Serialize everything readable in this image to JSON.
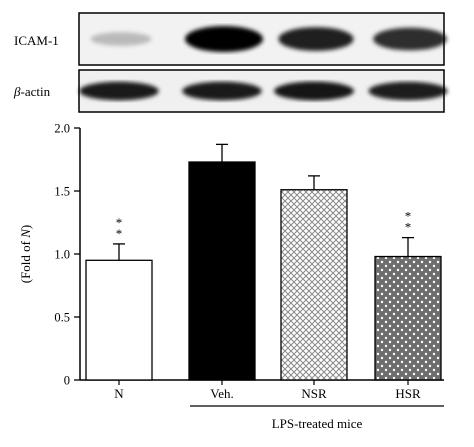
{
  "blot": {
    "panels": [
      {
        "label_prefix": "",
        "label_main": "ICAM-1",
        "intensities": [
          0.12,
          1.0,
          0.85,
          0.78
        ]
      },
      {
        "label_prefix": "β",
        "label_main": "-actin",
        "intensities": [
          0.88,
          0.88,
          0.9,
          0.86
        ]
      }
    ]
  },
  "chart_data": {
    "type": "bar",
    "categories": [
      "N",
      "Veh.",
      "NSR",
      "HSR"
    ],
    "values": [
      0.95,
      1.73,
      1.51,
      0.98
    ],
    "errors": [
      0.13,
      0.14,
      0.11,
      0.15
    ],
    "significance": [
      "**",
      "",
      "",
      "**"
    ],
    "fills": [
      "white",
      "black",
      "crosshatch",
      "dots"
    ],
    "ylabel_prefix": "(Fold of ",
    "ylabel_italic": "N",
    "ylabel_suffix": ")",
    "ylim": [
      0,
      2.0
    ],
    "yticks": [
      "0",
      "0.5",
      "1.0",
      "1.5",
      "2.0"
    ],
    "group_label": "LPS-treated mice",
    "grid": false
  }
}
